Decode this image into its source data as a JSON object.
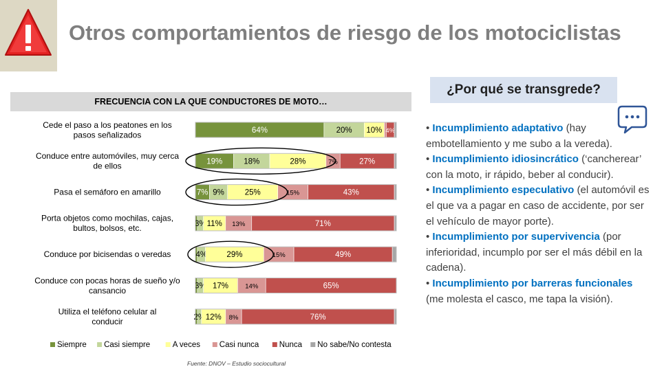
{
  "title": "Otros comportamientos de riesgo de los motociclistas",
  "warning_icon": "warning-triangle-icon",
  "chart_header": "FRECUENCIA CON LA QUE CONDUCTORES DE MOTO…",
  "source": "Fuente: DNOV – Estudio sociocultural",
  "colors": {
    "siempre": "#77933c",
    "casi_siempre": "#c3d69b",
    "a_veces": "#ffff99",
    "casi_nunca": "#d99694",
    "nunca": "#c0504d",
    "ns_nc": "#a6a6a6",
    "accent_blue": "#0070c0"
  },
  "chart_data": {
    "type": "bar",
    "orientation": "horizontal",
    "stacked": true,
    "title": "FRECUENCIA CON LA QUE CONDUCTORES DE MOTO…",
    "xlim": [
      0,
      100
    ],
    "categories": [
      "Cede el paso a los peatones en los pasos señalizados",
      "Conduce entre automóviles, muy cerca de ellos",
      "Pasa el semáforo en amarillo",
      "Porta objetos como mochilas, cajas, bultos, bolsos, etc.",
      "Conduce por bicisendas o veredas",
      "Conduce con pocas horas de sueño y/o cansancio",
      "Utiliza el teléfono celular al conducir"
    ],
    "series": [
      {
        "name": "Siempre",
        "color": "#77933c",
        "values": [
          64,
          19,
          7,
          1,
          1,
          1,
          1
        ]
      },
      {
        "name": "Casi siempre",
        "color": "#c3d69b",
        "values": [
          20,
          18,
          9,
          3,
          4,
          3,
          2
        ]
      },
      {
        "name": "A veces",
        "color": "#ffff99",
        "values": [
          10,
          28,
          25,
          11,
          29,
          17,
          12
        ]
      },
      {
        "name": "Casi nunca",
        "color": "#d99694",
        "values": [
          1,
          7,
          15,
          13,
          15,
          14,
          8
        ]
      },
      {
        "name": "Nunca",
        "color": "#c0504d",
        "values": [
          4,
          27,
          43,
          71,
          49,
          65,
          76
        ]
      },
      {
        "name": "No sabe/No contesta",
        "color": "#a6a6a6",
        "values": [
          1,
          1,
          1,
          1,
          2,
          0,
          1
        ]
      }
    ],
    "data_labels": [
      [
        "64%",
        "20%",
        "10%",
        "",
        "4%",
        ""
      ],
      [
        "19%",
        "18%",
        "28%",
        "7%",
        "27%",
        ""
      ],
      [
        "7%",
        "9%",
        "25%",
        "15%",
        "43%",
        ""
      ],
      [
        "",
        "3%",
        "11%",
        "13%",
        "71%",
        ""
      ],
      [
        "",
        "4%",
        "29%",
        "15%",
        "49%",
        ""
      ],
      [
        "",
        "3%",
        "17%",
        "14%",
        "65%",
        ""
      ],
      [
        "",
        "2%",
        "12%",
        "8%",
        "76%",
        ""
      ]
    ],
    "highlighted_segments": [
      {
        "category": 1,
        "series": [
          0,
          1,
          2
        ]
      },
      {
        "category": 2,
        "series": [
          0,
          1,
          2
        ]
      },
      {
        "category": 4,
        "series": [
          1,
          2
        ]
      }
    ],
    "legend_position": "bottom"
  },
  "why_title": "¿Por qué se transgrede?",
  "chat_icon": "speech-bubble-icon",
  "reasons": [
    {
      "bullet": "•",
      "title": "Incumplimiento adaptativo",
      "text": " (hay embotellamiento y me subo  a la vereda)."
    },
    {
      "bullet": "•",
      "title": "Incumplimiento idiosincrático",
      "text": " (‘cancherear’ con la moto, ir rápido, beber al conducir)."
    },
    {
      "bullet": "•",
      "title": "Incumplimiento especulativo",
      "text": " (el automóvil es el que va a pagar en caso de accidente, por ser el vehículo de mayor porte)."
    },
    {
      "bullet": "•",
      "title": "Incumplimiento por supervivencia",
      "text": " (por inferioridad, incumplo por ser el más débil en la cadena)."
    },
    {
      "bullet": "•",
      "title": "Incumplimiento por barreras funcionales",
      "text": " (me molesta el casco, me tapa la visión)."
    }
  ]
}
